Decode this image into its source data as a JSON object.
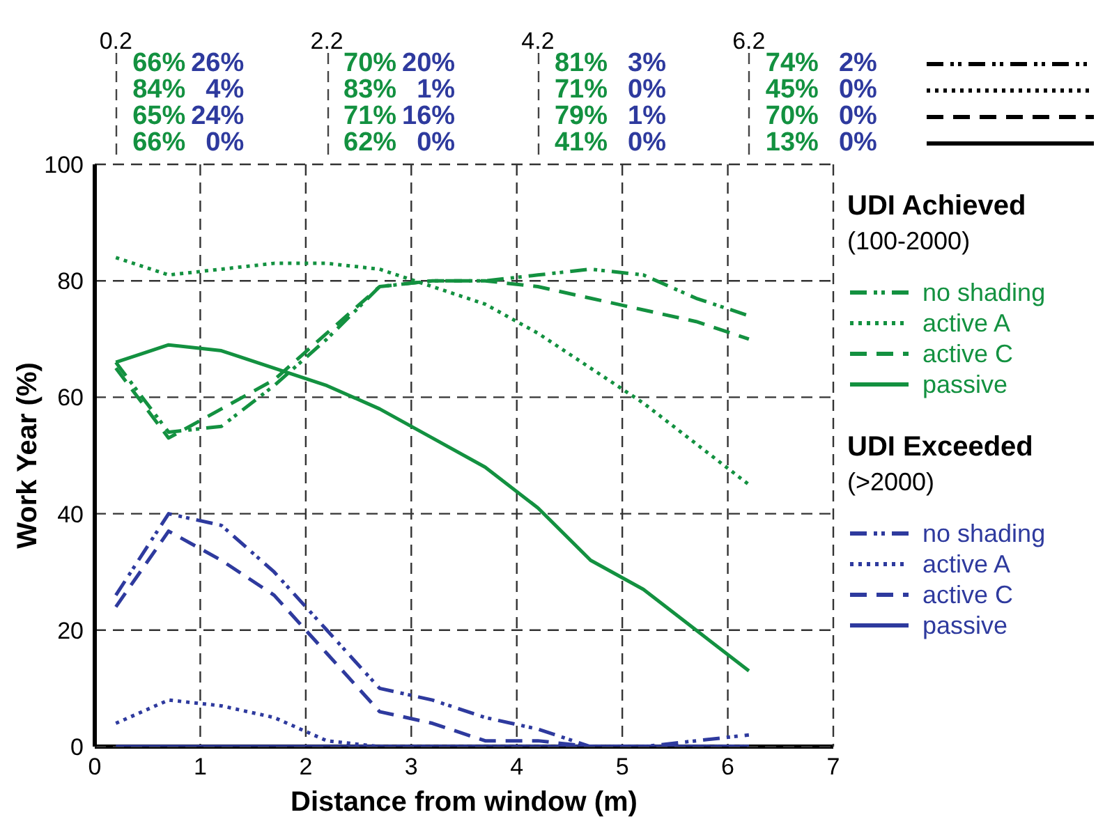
{
  "chart_data": {
    "type": "line",
    "x": [
      0.2,
      0.7,
      1.2,
      1.7,
      2.2,
      2.7,
      3.2,
      3.7,
      4.2,
      4.7,
      5.2,
      5.7,
      6.2
    ],
    "xlabel": "Distance from window (m)",
    "ylabel": "Work Year (%)",
    "xlim": [
      0,
      7
    ],
    "xticks": [
      0,
      1,
      2,
      3,
      4,
      5,
      6,
      7
    ],
    "ylim": [
      0,
      100
    ],
    "yticks": [
      0,
      20,
      40,
      60,
      80,
      100
    ],
    "x2lim": [
      0,
      7
    ],
    "x2ticks": [
      0.2,
      2.2,
      4.2,
      6.2
    ],
    "grid": true,
    "legend": "right",
    "marker": "none",
    "annotations": [
      "UDI Achieved",
      "(100-2000)",
      "UDI Exceeded",
      "(>2000)",
      "66%",
      "26%",
      "84%",
      "4%",
      "65%",
      "24%",
      "66%",
      "0%",
      "70%",
      "20%",
      "83%",
      "1%",
      "71%",
      "16%",
      "62%",
      "0%",
      "81%",
      "3%",
      "71%",
      "0%",
      "79%",
      "1%",
      "41%",
      "0%",
      "74%",
      "2%",
      "45%",
      "0%",
      "70%",
      "0%",
      "13%",
      "0%"
    ],
    "series": [
      {
        "name": "no shading",
        "color": "#139140",
        "line_style": "dashdotdot",
        "values": [
          66,
          54,
          55,
          62,
          70,
          79,
          80,
          80,
          81,
          82,
          81,
          77,
          74
        ]
      },
      {
        "name": "active A",
        "color": "#139140",
        "line_style": "dotted",
        "values": [
          84,
          81,
          82,
          83,
          83,
          82,
          79,
          76,
          71,
          65,
          59,
          52,
          45
        ]
      },
      {
        "name": "active C",
        "color": "#139140",
        "line_style": "dashed",
        "values": [
          65,
          53,
          58,
          63,
          71,
          79,
          80,
          80,
          79,
          77,
          75,
          73,
          70
        ]
      },
      {
        "name": "passive",
        "color": "#139140",
        "line_style": "solid",
        "values": [
          66,
          69,
          68,
          65,
          62,
          58,
          53,
          48,
          41,
          32,
          27,
          20,
          13
        ]
      },
      {
        "name": "no shading",
        "color": "#2e3a9e",
        "line_style": "dashdotdot",
        "values": [
          26,
          40,
          38,
          30,
          20,
          10,
          8,
          5,
          3,
          0,
          0,
          1,
          2
        ]
      },
      {
        "name": "active A",
        "color": "#2e3a9e",
        "line_style": "dotted",
        "values": [
          4,
          8,
          7,
          5,
          1,
          0,
          0,
          0,
          0,
          0,
          0,
          0,
          0
        ]
      },
      {
        "name": "active C",
        "color": "#2e3a9e",
        "line_style": "dashed",
        "values": [
          24,
          37,
          32,
          26,
          16,
          6,
          4,
          1,
          1,
          0,
          0,
          0,
          0
        ]
      },
      {
        "name": "passive",
        "color": "#2e3a9e",
        "line_style": "solid",
        "values": [
          0,
          0,
          0,
          0,
          0,
          0,
          0,
          0,
          0,
          0,
          0,
          0,
          0
        ]
      }
    ]
  }
}
